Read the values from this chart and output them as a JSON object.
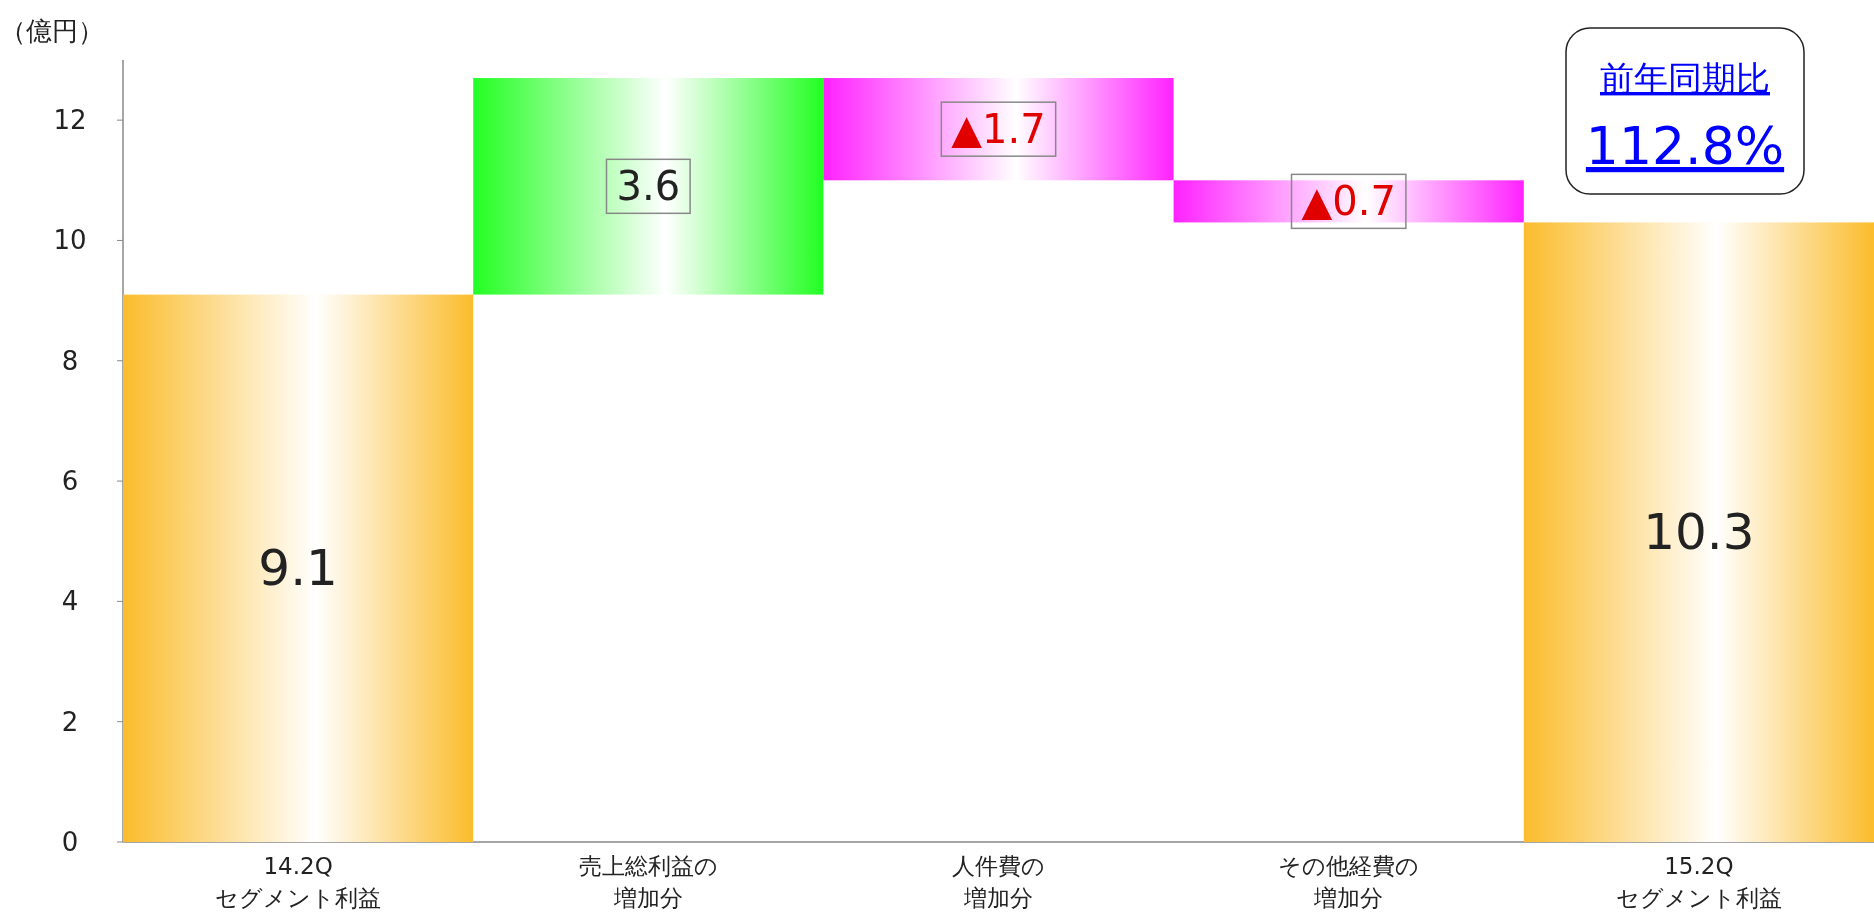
{
  "chart_data": {
    "type": "bar",
    "ylabel": "（億円）",
    "categories": [
      "14.2Q\nセグメント利益",
      "売上総利益の増加分",
      "人件費の増加分",
      "その他経費の増加分",
      "15.2Q\nセグメント利益"
    ],
    "values": [
      9.1,
      3.6,
      -1.7,
      -0.7,
      10.3
    ],
    "base": [
      0,
      9.1,
      12.7,
      11.0,
      0
    ],
    "colors": [
      "#fbbc2c",
      "#22ff22",
      "#ff22ff",
      "#ff22ff",
      "#fbbc2c"
    ],
    "value_labels": [
      "9.1",
      "3.6",
      "▲1.7",
      "▲0.7",
      "10.3"
    ],
    "ylim": [
      0,
      13
    ],
    "yticks": [
      0,
      2,
      4,
      6,
      8,
      10,
      12
    ],
    "annotations": [
      "前年同期比",
      "112.8%"
    ]
  }
}
